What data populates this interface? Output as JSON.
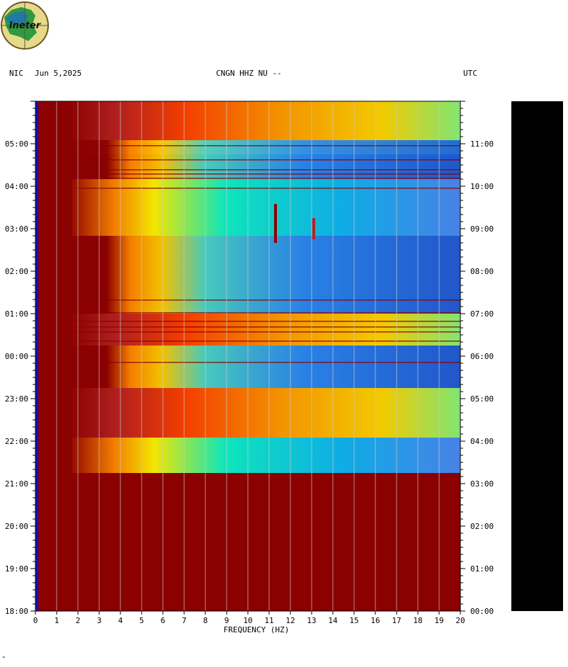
{
  "header": {
    "station_left": "NIC",
    "date": "Jun 5,2025",
    "channel": "CNGN HHZ NU --",
    "tz_right": "UTC"
  },
  "logo": {
    "text": "Ineter",
    "colors": [
      "#1e6fbf",
      "#2f9a3f",
      "#e6c230",
      "#b22222"
    ]
  },
  "chart_data": {
    "type": "heatmap",
    "title": "CNGN HHZ NU --",
    "xlabel": "FREQUENCY (HZ)",
    "x_ticks": [
      "0",
      "1",
      "2",
      "3",
      "4",
      "5",
      "6",
      "7",
      "8",
      "9",
      "10",
      "11",
      "12",
      "13",
      "14",
      "15",
      "16",
      "17",
      "18",
      "19",
      "20"
    ],
    "xlim": [
      0,
      20
    ],
    "left_time_ticks": [
      "18:00",
      "19:00",
      "20:00",
      "21:00",
      "22:00",
      "23:00",
      "00:00",
      "01:00",
      "02:00",
      "03:00",
      "04:00",
      "05:00"
    ],
    "right_time_ticks": [
      "00:00",
      "01:00",
      "02:00",
      "03:00",
      "04:00",
      "05:00",
      "06:00",
      "07:00",
      "08:00",
      "09:00",
      "10:00",
      "11:00"
    ],
    "colormap": [
      "#000080",
      "#0000ff",
      "#00bfff",
      "#40e0d0",
      "#ffff00",
      "#ff8c00",
      "#ff0000",
      "#8b0000"
    ],
    "grid": true
  },
  "footer_mark": "\""
}
